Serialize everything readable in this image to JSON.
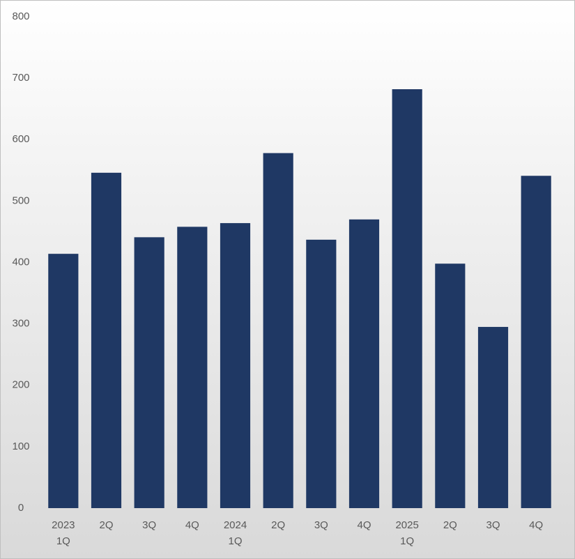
{
  "chart_data": {
    "type": "bar",
    "categories": [
      "1Q",
      "2Q",
      "3Q",
      "4Q",
      "1Q",
      "2Q",
      "3Q",
      "4Q",
      "1Q",
      "2Q",
      "3Q",
      "4Q"
    ],
    "years": [
      "2023",
      null,
      null,
      null,
      "2024",
      null,
      null,
      null,
      "2025",
      null,
      null,
      null
    ],
    "values": [
      414,
      546,
      441,
      458,
      464,
      578,
      437,
      470,
      682,
      398,
      295,
      541
    ],
    "color": "#1f3864",
    "ylim": [
      0,
      800
    ],
    "yticks": [
      0,
      100,
      200,
      300,
      400,
      500,
      600,
      700,
      800
    ],
    "grid": false
  }
}
